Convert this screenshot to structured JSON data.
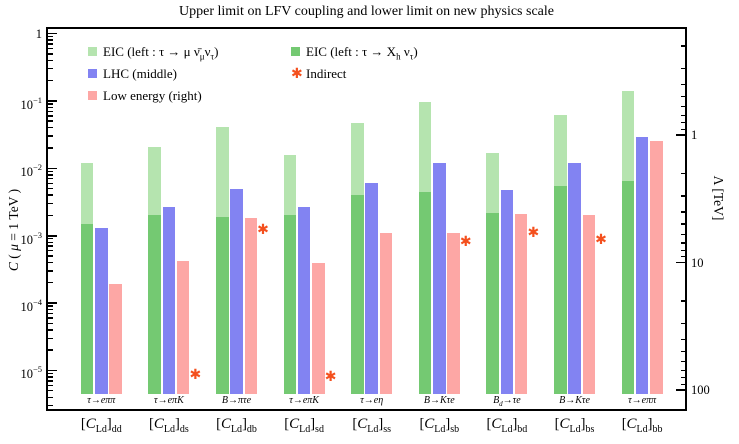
{
  "title": "Upper limit on LFV coupling and lower limit on new physics scale",
  "axes": {
    "left": {
      "label": "*C* ( *μ* = 1 TeV )",
      "major_ticks": [
        {
          "v": 1,
          "label": "1"
        },
        {
          "v": 0.1,
          "label": "10^{−1}"
        },
        {
          "v": 0.01,
          "label": "10^{−2}"
        },
        {
          "v": 0.001,
          "label": "10^{−3}"
        },
        {
          "v": 0.0001,
          "label": "10^{−4}"
        },
        {
          "v": 1e-05,
          "label": "10^{−5}"
        }
      ]
    },
    "right": {
      "label": "Λ [TeV]",
      "major_ticks": [
        {
          "v": 1,
          "label": "1"
        },
        {
          "v": 10,
          "label": "10"
        },
        {
          "v": 100,
          "label": "100"
        }
      ]
    }
  },
  "legend": [
    {
      "label": "EIC (left : τ → μ ν̄_{μ}ν_{τ})",
      "marker": "square",
      "color": "#b5e4af",
      "col": 1,
      "row": 1
    },
    {
      "label": "LHC (middle)",
      "marker": "square",
      "color": "#8283f2",
      "col": 1,
      "row": 2
    },
    {
      "label": "Low energy (right)",
      "marker": "square",
      "color": "#fda7a5",
      "col": 1,
      "row": 3
    },
    {
      "label": "EIC (left : τ → X_{h} ν_{τ})",
      "marker": "square",
      "color": "#74c972",
      "col": 2,
      "row": 1
    },
    {
      "label": "Indirect",
      "marker": "asterisk",
      "color": "#f4501e",
      "col": 2,
      "row": 2
    }
  ],
  "chart_data": {
    "type": "bar",
    "log_scale": true,
    "title": "Upper limit on LFV coupling and lower limit on new physics scale",
    "ylabel_left": "C ( μ = 1 TeV )",
    "ylabel_right": "Λ [TeV]",
    "ylim_left": [
      2.5e-06,
      1.25
    ],
    "ylim_right_top_to_bottom": [
      0.142,
      146
    ],
    "bar_base": 4.5e-06,
    "grid": false,
    "legend_position": "upper-left-inside",
    "categories": [
      "[*C*_{Ld}]_{dd}",
      "[*C*_{Ld}]_{ds}",
      "[*C*_{Ld}]_{db}",
      "[*C*_{Ld}]_{sd}",
      "[*C*_{Ld}]_{ss}",
      "[*C*_{Ld}]_{sb}",
      "[*C*_{Ld}]_{bd}",
      "[*C*_{Ld}]_{bs}",
      "[*C*_{Ld}]_{bb}"
    ],
    "decay_labels": [
      "τ→eππ",
      "τ→eπK",
      "B→πτe",
      "τ→eπK",
      "τ→eη",
      "B→Kτe",
      "B_{d}→τe",
      "B→Kτe",
      "τ→eππ"
    ],
    "series": [
      {
        "name": "EIC (left : τ → μ ν̄μ ντ)",
        "slot": "left-overlay-light",
        "color": "#b5e4af",
        "values": [
          0.012,
          0.021,
          0.041,
          0.016,
          0.047,
          0.096,
          0.017,
          0.062,
          0.14
        ]
      },
      {
        "name": "EIC (left : τ → Xh ντ)",
        "slot": "left-overlay-dark",
        "color": "#74c972",
        "values": [
          0.0015,
          0.002,
          0.0019,
          0.002,
          0.004,
          0.0044,
          0.0022,
          0.0054,
          0.0065
        ]
      },
      {
        "name": "LHC (middle)",
        "slot": "middle",
        "color": "#8283f2",
        "values": [
          0.0013,
          0.0027,
          0.0049,
          0.0027,
          0.006,
          0.012,
          0.0048,
          0.012,
          0.029
        ]
      },
      {
        "name": "Low energy (right)",
        "slot": "right",
        "color": "#fda7a5",
        "values": [
          0.00019,
          0.00042,
          0.0018,
          0.00039,
          0.0011,
          0.0011,
          0.0021,
          0.002,
          0.025
        ]
      },
      {
        "name": "Indirect",
        "slot": "marker",
        "marker": "asterisk",
        "color": "#f4501e",
        "values": [
          null,
          8.6e-06,
          0.0012,
          8e-06,
          null,
          0.0008,
          0.0011,
          0.00086,
          null
        ]
      }
    ]
  }
}
